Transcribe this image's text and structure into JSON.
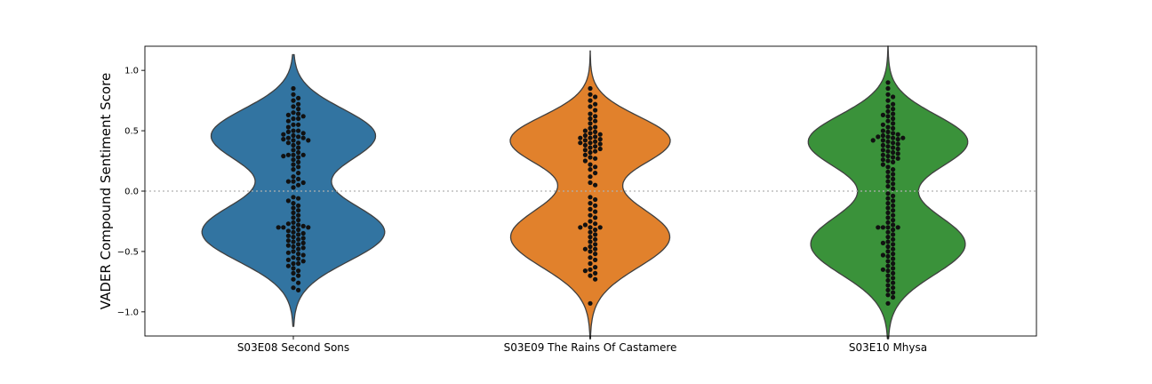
{
  "chart_data": {
    "type": "violin",
    "ylabel": "VADER Compound Sentiment Score",
    "ylim": [
      -1.2,
      1.2
    ],
    "yticks": [
      1.0,
      0.5,
      0.0,
      -0.5,
      -1.0
    ],
    "ytick_labels": [
      "1.0",
      "0.5",
      "0.0",
      "−0.5",
      "−1.0"
    ],
    "zero_reference_line": true,
    "categories": [
      "S03E08 Second Sons",
      "S03E09 The Rains Of Castamere",
      "S03E10 Mhysa"
    ],
    "violins": [
      {
        "name": "S03E08 Second Sons",
        "color": "#3274a1",
        "range": [
          -1.12,
          1.13
        ],
        "modes": [
          {
            "center": 0.46,
            "half_width": 0.35,
            "spread": 0.22
          },
          {
            "center": -0.34,
            "half_width": 0.39,
            "spread": 0.24
          }
        ]
      },
      {
        "name": "S03E09 The Rains Of Castamere",
        "color": "#e1812c",
        "range": [
          -1.22,
          1.16
        ],
        "modes": [
          {
            "center": 0.42,
            "half_width": 0.34,
            "spread": 0.2
          },
          {
            "center": -0.38,
            "half_width": 0.34,
            "spread": 0.25
          }
        ]
      },
      {
        "name": "S03E10 Mhysa",
        "color": "#3a923a",
        "range": [
          -1.22,
          1.2
        ],
        "modes": [
          {
            "center": 0.41,
            "half_width": 0.34,
            "spread": 0.22
          },
          {
            "center": -0.44,
            "half_width": 0.33,
            "spread": 0.25
          }
        ]
      }
    ],
    "swarm_points": [
      [
        0.85,
        0.8,
        0.77,
        0.75,
        0.72,
        0.7,
        0.68,
        0.65,
        0.64,
        0.63,
        0.62,
        0.6,
        0.6,
        0.58,
        0.55,
        0.55,
        0.53,
        0.5,
        0.5,
        0.49,
        0.48,
        0.47,
        0.46,
        0.45,
        0.44,
        0.44,
        0.43,
        0.42,
        0.42,
        0.4,
        0.4,
        0.38,
        0.36,
        0.34,
        0.32,
        0.3,
        0.3,
        0.3,
        0.29,
        0.28,
        0.26,
        0.24,
        0.22,
        0.2,
        0.18,
        0.15,
        0.12,
        0.1,
        0.08,
        0.08,
        0.07,
        0.05,
        0.03,
        -0.05,
        -0.06,
        -0.08,
        -0.1,
        -0.12,
        -0.14,
        -0.16,
        -0.18,
        -0.2,
        -0.22,
        -0.24,
        -0.26,
        -0.27,
        -0.28,
        -0.29,
        -0.3,
        -0.3,
        -0.3,
        -0.3,
        -0.32,
        -0.33,
        -0.34,
        -0.35,
        -0.36,
        -0.37,
        -0.38,
        -0.39,
        -0.4,
        -0.41,
        -0.42,
        -0.43,
        -0.44,
        -0.45,
        -0.46,
        -0.47,
        -0.48,
        -0.5,
        -0.51,
        -0.52,
        -0.53,
        -0.55,
        -0.56,
        -0.57,
        -0.58,
        -0.6,
        -0.6,
        -0.62,
        -0.64,
        -0.66,
        -0.68,
        -0.7,
        -0.73,
        -0.76,
        -0.8,
        -0.82
      ],
      [
        0.85,
        0.8,
        0.78,
        0.75,
        0.72,
        0.7,
        0.67,
        0.64,
        0.62,
        0.6,
        0.58,
        0.56,
        0.53,
        0.52,
        0.5,
        0.49,
        0.48,
        0.47,
        0.46,
        0.45,
        0.44,
        0.44,
        0.43,
        0.42,
        0.41,
        0.4,
        0.4,
        0.39,
        0.38,
        0.37,
        0.36,
        0.35,
        0.34,
        0.33,
        0.32,
        0.3,
        0.28,
        0.27,
        0.25,
        0.22,
        0.2,
        0.18,
        0.15,
        0.12,
        0.07,
        0.05,
        -0.05,
        -0.07,
        -0.1,
        -0.12,
        -0.15,
        -0.17,
        -0.2,
        -0.22,
        -0.25,
        -0.27,
        -0.28,
        -0.3,
        -0.3,
        -0.3,
        -0.32,
        -0.34,
        -0.36,
        -0.38,
        -0.4,
        -0.42,
        -0.44,
        -0.46,
        -0.48,
        -0.48,
        -0.5,
        -0.52,
        -0.55,
        -0.57,
        -0.6,
        -0.63,
        -0.65,
        -0.66,
        -0.68,
        -0.7,
        -0.73,
        -0.93
      ],
      [
        0.9,
        0.85,
        0.8,
        0.78,
        0.75,
        0.72,
        0.7,
        0.68,
        0.66,
        0.64,
        0.63,
        0.62,
        0.6,
        0.58,
        0.56,
        0.55,
        0.53,
        0.52,
        0.5,
        0.49,
        0.48,
        0.47,
        0.46,
        0.45,
        0.45,
        0.44,
        0.44,
        0.43,
        0.42,
        0.42,
        0.41,
        0.4,
        0.39,
        0.38,
        0.37,
        0.36,
        0.35,
        0.34,
        0.33,
        0.32,
        0.31,
        0.3,
        0.29,
        0.28,
        0.27,
        0.26,
        0.25,
        0.24,
        0.22,
        0.2,
        0.18,
        0.16,
        0.14,
        0.12,
        0.1,
        0.08,
        0.06,
        0.04,
        0.02,
        -0.02,
        -0.04,
        -0.06,
        -0.08,
        -0.1,
        -0.12,
        -0.14,
        -0.16,
        -0.18,
        -0.2,
        -0.22,
        -0.24,
        -0.26,
        -0.28,
        -0.3,
        -0.3,
        -0.3,
        -0.3,
        -0.32,
        -0.34,
        -0.36,
        -0.38,
        -0.4,
        -0.42,
        -0.43,
        -0.44,
        -0.46,
        -0.48,
        -0.5,
        -0.52,
        -0.53,
        -0.54,
        -0.56,
        -0.58,
        -0.6,
        -0.62,
        -0.64,
        -0.65,
        -0.66,
        -0.68,
        -0.7,
        -0.72,
        -0.74,
        -0.76,
        -0.78,
        -0.8,
        -0.82,
        -0.84,
        -0.86,
        -0.88,
        -0.93
      ]
    ]
  }
}
